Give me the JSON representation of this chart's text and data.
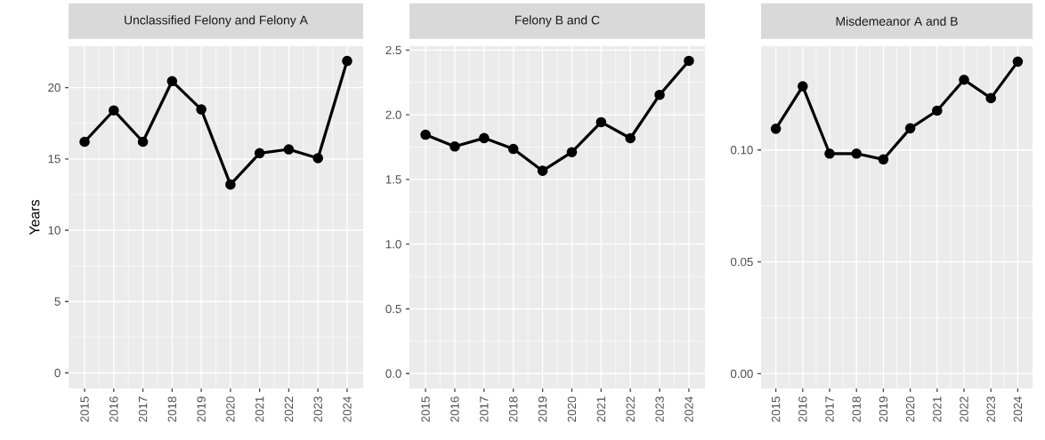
{
  "chart_data": [
    {
      "type": "line",
      "title": "Unclassified Felony and Felony A",
      "ylabel": "Years",
      "color": "#000000",
      "marker": "circle",
      "grid": true,
      "categories": [
        "2015",
        "2016",
        "2017",
        "2018",
        "2019",
        "2020",
        "2021",
        "2022",
        "2023",
        "2024"
      ],
      "values": [
        16.2,
        18.4,
        16.2,
        20.45,
        18.47,
        13.2,
        15.4,
        15.67,
        15.05,
        21.87
      ],
      "ylim": [
        -1.09,
        22.9
      ],
      "yticks": [
        0,
        5,
        10,
        15,
        20
      ]
    },
    {
      "type": "line",
      "title": "Felony B and C",
      "color": "#000000",
      "marker": "circle",
      "grid": true,
      "categories": [
        "2015",
        "2016",
        "2017",
        "2018",
        "2019",
        "2020",
        "2021",
        "2022",
        "2023",
        "2024"
      ],
      "values": [
        1.846,
        1.755,
        1.82,
        1.736,
        1.567,
        1.711,
        1.943,
        1.819,
        2.154,
        2.417
      ],
      "ylim": [
        -0.115,
        2.53
      ],
      "yticks": [
        {
          "value": 0,
          "label": "0.0"
        },
        0.5,
        {
          "value": 1,
          "label": "1.0"
        },
        1.5,
        {
          "value": 2,
          "label": "2.0"
        },
        2.5
      ]
    },
    {
      "type": "line",
      "title": "Misdemeanor A and B",
      "color": "#000000",
      "marker": "circle",
      "grid": true,
      "categories": [
        "2015",
        "2016",
        "2017",
        "2018",
        "2019",
        "2020",
        "2021",
        "2022",
        "2023",
        "2024"
      ],
      "values": [
        0.1095,
        0.1285,
        0.0984,
        0.0984,
        0.0958,
        0.1097,
        0.1176,
        0.1314,
        0.1232,
        0.1395
      ],
      "ylim": [
        -0.0066,
        0.1464
      ],
      "yticks": [
        {
          "value": 0,
          "label": "0.00"
        },
        0.05,
        {
          "value": 0.1,
          "label": "0.10"
        }
      ]
    }
  ]
}
